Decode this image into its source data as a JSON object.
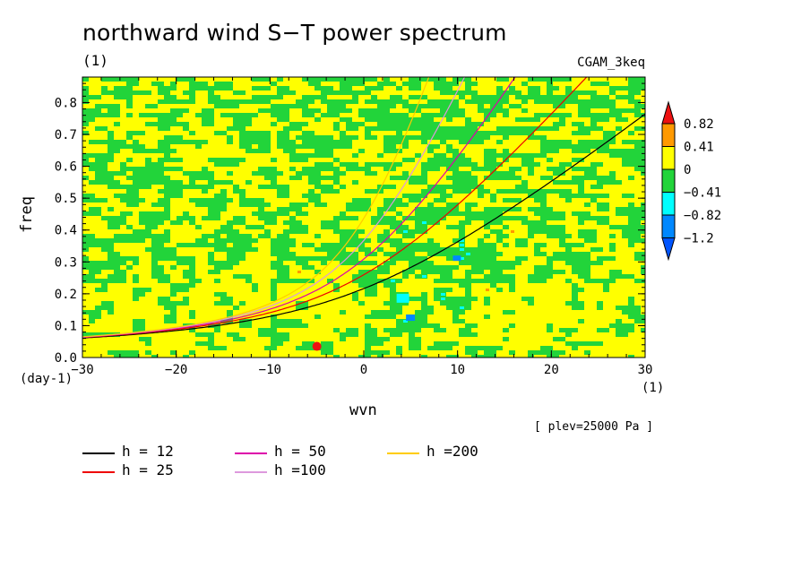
{
  "title": "northward wind S−T power spectrum",
  "subtitle": "(1)",
  "run_name": "CGAM_3keq",
  "pressure_note": "[ plev=25000 Pa ]",
  "colors": {
    "yellow": "#ffff00",
    "green": "#22d43a",
    "orange": "#ff9900",
    "red": "#ee1111",
    "cyan": "#00ffff",
    "blue": "#0088ff"
  },
  "chart_data": {
    "type": "heatmap",
    "title": "northward wind S−T power spectrum",
    "xlabel": "wvn",
    "x_unit": "(1)",
    "ylabel": "freq",
    "y_unit": "(day-1)",
    "xlim": [
      -30,
      30
    ],
    "ylim": [
      0,
      0.88
    ],
    "x_ticks": [
      "−30",
      "−20",
      "−10",
      "0",
      "10",
      "20",
      "30"
    ],
    "y_ticks": [
      "0.0",
      "0.1",
      "0.2",
      "0.3",
      "0.4",
      "0.5",
      "0.6",
      "0.7",
      "0.8"
    ],
    "colorbar": {
      "levels": [
        "0.82",
        "0.41",
        "0",
        "−0.41",
        "−0.82",
        "−1.2"
      ],
      "bands": [
        {
          "range": "> 0.82",
          "color": "#ee1111"
        },
        {
          "range": "0.41 – 0.82",
          "color": "#ff9900"
        },
        {
          "range": "0 – 0.41",
          "color": "#ffff00"
        },
        {
          "range": "−0.41 – 0",
          "color": "#22d43a"
        },
        {
          "range": "−0.82 – −0.41",
          "color": "#00ffff"
        },
        {
          "range": "−1.2 – −0.82",
          "color": "#0088ff"
        },
        {
          "range": "< −1.2",
          "color": "#0055ff"
        }
      ]
    },
    "dispersion_curves": [
      {
        "name": "h = 12",
        "color": "#000000",
        "h": 12
      },
      {
        "name": "h = 25",
        "color": "#ee0000",
        "h": 25
      },
      {
        "name": "h = 50",
        "color": "#dd00aa",
        "h": 50
      },
      {
        "name": "h =100",
        "color": "#dd99dd",
        "h": 100
      },
      {
        "name": "h =200",
        "color": "#ffcc00",
        "h": 200
      }
    ],
    "grid": false
  }
}
